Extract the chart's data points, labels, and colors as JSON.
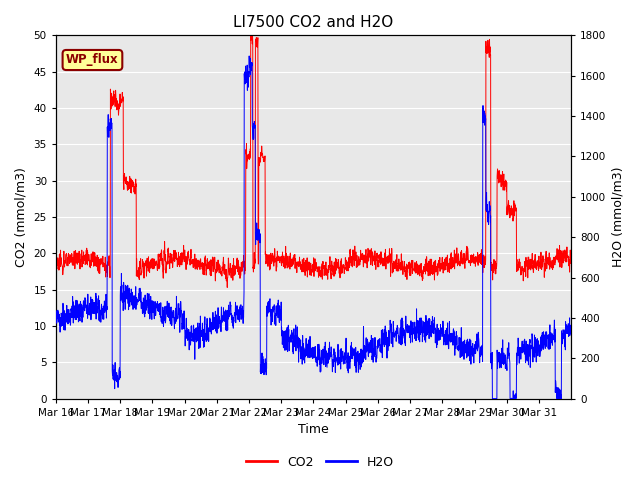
{
  "title": "LI7500 CO2 and H2O",
  "xlabel": "Time",
  "ylabel_left": "CO2 (mmol/m3)",
  "ylabel_right": "H2O (mmol/m3)",
  "ylim_left": [
    0,
    50
  ],
  "ylim_right": [
    0,
    1800
  ],
  "yticks_left": [
    0,
    5,
    10,
    15,
    20,
    25,
    30,
    35,
    40,
    45,
    50
  ],
  "yticks_right": [
    0,
    200,
    400,
    600,
    800,
    1000,
    1200,
    1400,
    1600,
    1800
  ],
  "xtick_labels": [
    "Mar 16",
    "Mar 17",
    "Mar 18",
    "Mar 19",
    "Mar 20",
    "Mar 21",
    "Mar 22",
    "Mar 23",
    "Mar 24",
    "Mar 25",
    "Mar 26",
    "Mar 27",
    "Mar 28",
    "Mar 29",
    "Mar 30",
    "Mar 31"
  ],
  "annotation_text": "WP_flux",
  "co2_color": "#FF0000",
  "h2o_color": "#0000FF",
  "background_color": "#E8E8E8",
  "grid_color": "#FFFFFF",
  "title_fontsize": 11,
  "axis_fontsize": 9,
  "tick_fontsize": 7.5,
  "legend_fontsize": 9
}
